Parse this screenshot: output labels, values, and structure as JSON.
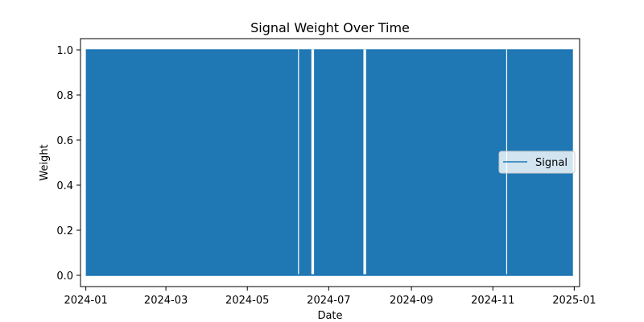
{
  "chart_data": {
    "type": "line",
    "title": "Signal Weight Over Time",
    "xlabel": "Date",
    "ylabel": "Weight",
    "x_range": [
      "2023-12-28",
      "2025-01-05"
    ],
    "ylim": [
      -0.05,
      1.05
    ],
    "x_ticks": [
      "2024-01",
      "2024-03",
      "2024-05",
      "2024-07",
      "2024-09",
      "2024-11",
      "2025-01"
    ],
    "y_ticks": [
      "0.0",
      "0.2",
      "0.4",
      "0.6",
      "0.8",
      "1.0"
    ],
    "y_tick_values": [
      0.0,
      0.2,
      0.4,
      0.6,
      0.8,
      1.0
    ],
    "grid": false,
    "legend": {
      "position": "center-right",
      "entries": [
        "Signal"
      ]
    },
    "series": [
      {
        "name": "Signal",
        "color": "#1f77b4",
        "values_description": "binary weight (0 or 1) switching rapidly between 2024-01-01 and 2024-12-31",
        "x_start": "2024-01-01",
        "x_end": "2024-12-31",
        "levels": [
          0,
          1
        ],
        "gaps_at_zero": [
          [
            "2024-06-08",
            "2024-06-08"
          ],
          [
            "2024-06-18",
            "2024-06-20"
          ],
          [
            "2024-07-27",
            "2024-07-29"
          ],
          [
            "2024-11-11",
            "2024-11-11"
          ]
        ]
      }
    ]
  }
}
